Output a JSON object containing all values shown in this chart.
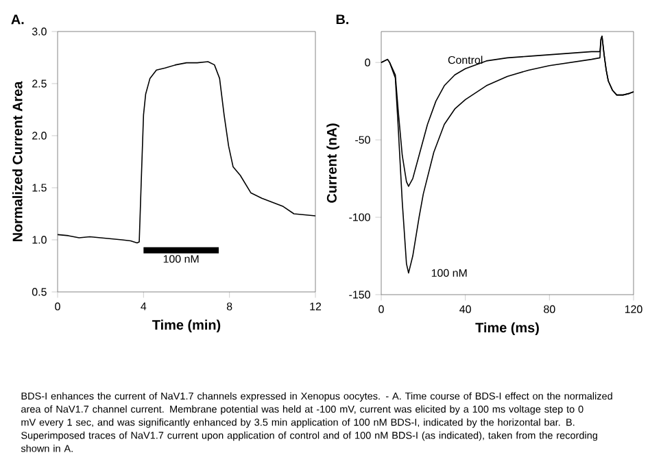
{
  "chart_data": [
    {
      "type": "line",
      "title": "A.",
      "xlabel": "Time (min)",
      "ylabel": "Normalized Current Area",
      "xlim": [
        0,
        12
      ],
      "ylim": [
        0.5,
        3.0
      ],
      "xticks": [
        0,
        4,
        8,
        12
      ],
      "yticks": [
        0.5,
        {
          "value": 1,
          "label": "1.0"
        },
        1.5,
        {
          "value": 2,
          "label": "2.0"
        },
        2.5,
        {
          "value": 3,
          "label": "3.0"
        }
      ],
      "series": [
        {
          "color": "#000000",
          "x": [
            0,
            0.5,
            1,
            1.5,
            2,
            2.5,
            3,
            3.4,
            3.7,
            3.8,
            3.9,
            4.0,
            4.1,
            4.3,
            4.6,
            5,
            5.5,
            6,
            6.5,
            7,
            7.3,
            7.54,
            7.75,
            7.96,
            8.17,
            8.5,
            9,
            9.5,
            10,
            10.5,
            11,
            11.5,
            12
          ],
          "values": [
            1.05,
            1.04,
            1.02,
            1.03,
            1.02,
            1.01,
            1.0,
            0.99,
            0.97,
            0.98,
            1.6,
            2.2,
            2.4,
            2.55,
            2.63,
            2.65,
            2.68,
            2.7,
            2.7,
            2.71,
            2.68,
            2.55,
            2.2,
            1.9,
            1.7,
            1.62,
            1.45,
            1.4,
            1.36,
            1.32,
            1.25,
            1.24,
            1.23
          ]
        },
        {
          "name": "100 nM",
          "color": "#000000",
          "x": [
            4,
            7.5
          ],
          "values": [
            0.9,
            0.9
          ]
        }
      ],
      "annotations": [
        "BDS-I enhances the current of NaV1.7 channels expressed in Xenopus oocytes. - A. Time course of BDS-I effect on the normalized area of NaV1.7 channel current. Membrane potential was held at -100 mV, current was elicited by a 100 ms voltage step to 0 mV every 1 sec, and was significantly enhanced by 3.5 min application of 100 nM BDS-I, indicated by the horizontal bar. B. Superimposed traces of NaV1.7 current upon application of control and of 100 nM BDS-I (as indicated), taken from the recording shown in A."
      ]
    },
    {
      "type": "line",
      "title": "B.",
      "xlabel": "Time (ms)",
      "ylabel": "Current (nA)",
      "xlim": [
        0,
        120
      ],
      "ylim": [
        -150,
        20
      ],
      "xticks": [
        0,
        40,
        80,
        120
      ],
      "yticks": [
        -150,
        -100,
        -50,
        0
      ],
      "series": [
        {
          "name": "Control",
          "color": "#000000",
          "x": [
            0,
            3,
            4,
            6.7,
            8,
            10,
            12,
            13,
            15,
            18,
            22,
            26,
            30,
            35,
            40,
            50,
            60,
            70,
            80,
            90,
            100,
            104,
            104.5,
            105,
            106,
            107,
            108,
            110,
            112,
            115,
            118,
            120
          ],
          "values": [
            0,
            2,
            0,
            -8,
            -30,
            -60,
            -77,
            -80,
            -75,
            -60,
            -40,
            -25,
            -15,
            -8,
            -4,
            1,
            3,
            4,
            5,
            6,
            7,
            7,
            15,
            17,
            5,
            -5,
            -12,
            -18,
            -21,
            -21,
            -20,
            -19
          ]
        },
        {
          "name": "100 nM",
          "color": "#000000",
          "x": [
            0,
            3,
            4,
            6.7,
            8,
            10,
            12,
            13,
            15,
            18,
            20,
            25,
            30,
            35,
            40,
            50,
            60,
            70,
            80,
            90,
            100,
            104,
            104.5,
            105,
            106,
            107,
            108,
            110,
            112,
            115,
            118,
            120
          ],
          "values": [
            0,
            2,
            0,
            -10,
            -40,
            -90,
            -130,
            -136,
            -125,
            -100,
            -85,
            -58,
            -40,
            -30,
            -24,
            -15,
            -9,
            -5,
            -2,
            0,
            2,
            3,
            15,
            17,
            5,
            -5,
            -12,
            -18,
            -21,
            -21,
            -20,
            -19
          ]
        }
      ]
    }
  ]
}
